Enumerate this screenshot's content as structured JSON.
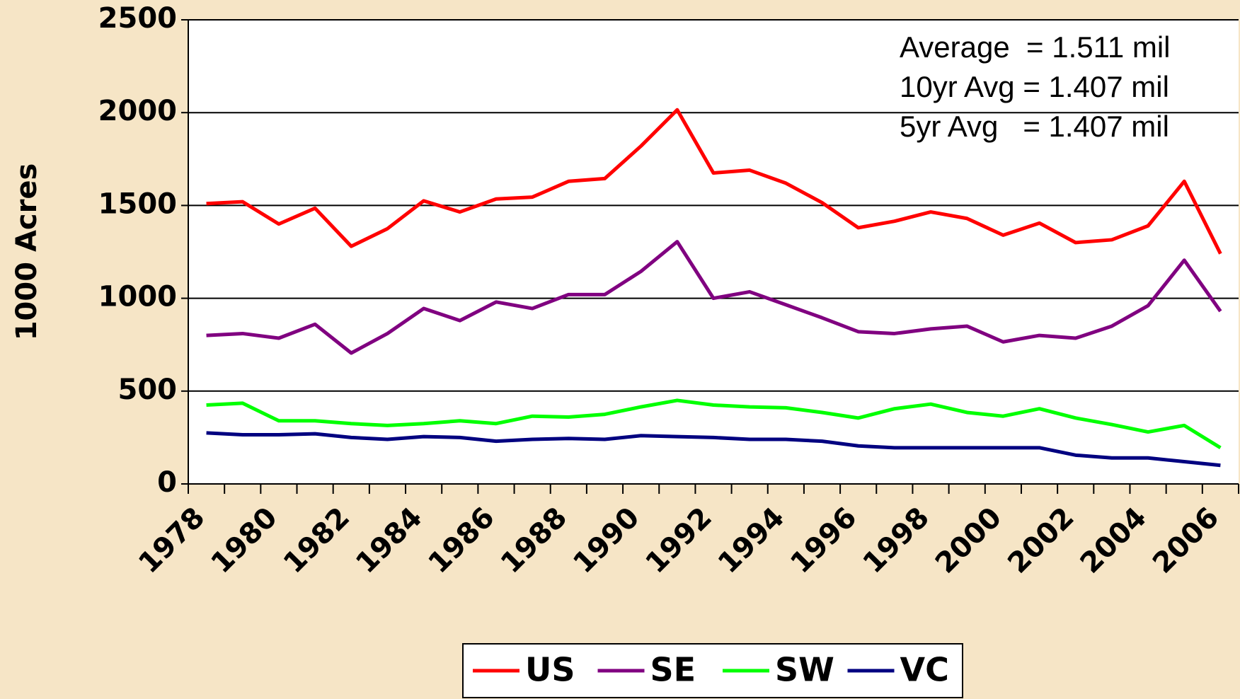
{
  "chart_data": {
    "type": "line",
    "y_label": "1000 Acres",
    "annotations": [
      "Average  = 1.511 mil",
      "10yr Avg = 1.407 mil",
      "5yr Avg   = 1.407 mil"
    ],
    "categories": [
      "1978",
      null,
      "1980",
      null,
      "1982",
      null,
      "1984",
      null,
      "1986",
      null,
      "1988",
      null,
      "1990",
      null,
      "1992",
      null,
      "1994",
      null,
      "1996",
      null,
      "1998",
      null,
      "2000",
      null,
      "2002",
      null,
      "2004",
      null,
      "2006"
    ],
    "series": [
      {
        "name": "US",
        "color": "#ff0000",
        "values": [
          1510,
          1520,
          1400,
          1485,
          1280,
          1375,
          1525,
          1465,
          1535,
          1545,
          1630,
          1645,
          1820,
          2015,
          1675,
          1690,
          1620,
          1515,
          1380,
          1415,
          1465,
          1430,
          1340,
          1405,
          1300,
          1315,
          1390,
          1630,
          1240
        ]
      },
      {
        "name": "SE",
        "color": "#800080",
        "values": [
          800,
          810,
          785,
          860,
          705,
          810,
          945,
          880,
          980,
          945,
          1020,
          1020,
          1145,
          1305,
          1000,
          1035,
          965,
          895,
          820,
          810,
          835,
          850,
          765,
          800,
          785,
          850,
          960,
          1205,
          930
        ]
      },
      {
        "name": "SW",
        "color": "#00ff00",
        "values": [
          425,
          435,
          340,
          340,
          325,
          315,
          325,
          340,
          325,
          365,
          360,
          375,
          415,
          450,
          425,
          415,
          410,
          385,
          355,
          405,
          430,
          385,
          365,
          405,
          355,
          320,
          280,
          315,
          195
        ]
      },
      {
        "name": "VC",
        "color": "#000080",
        "values": [
          275,
          265,
          265,
          270,
          250,
          240,
          255,
          250,
          230,
          240,
          245,
          240,
          260,
          255,
          250,
          240,
          240,
          230,
          205,
          195,
          195,
          195,
          195,
          195,
          155,
          140,
          140,
          120,
          100
        ]
      }
    ],
    "ylim": [
      0,
      2500
    ],
    "yticks": [
      0,
      500,
      1000,
      1500,
      2000,
      2500
    ],
    "grid": true,
    "legend": "bottom"
  }
}
